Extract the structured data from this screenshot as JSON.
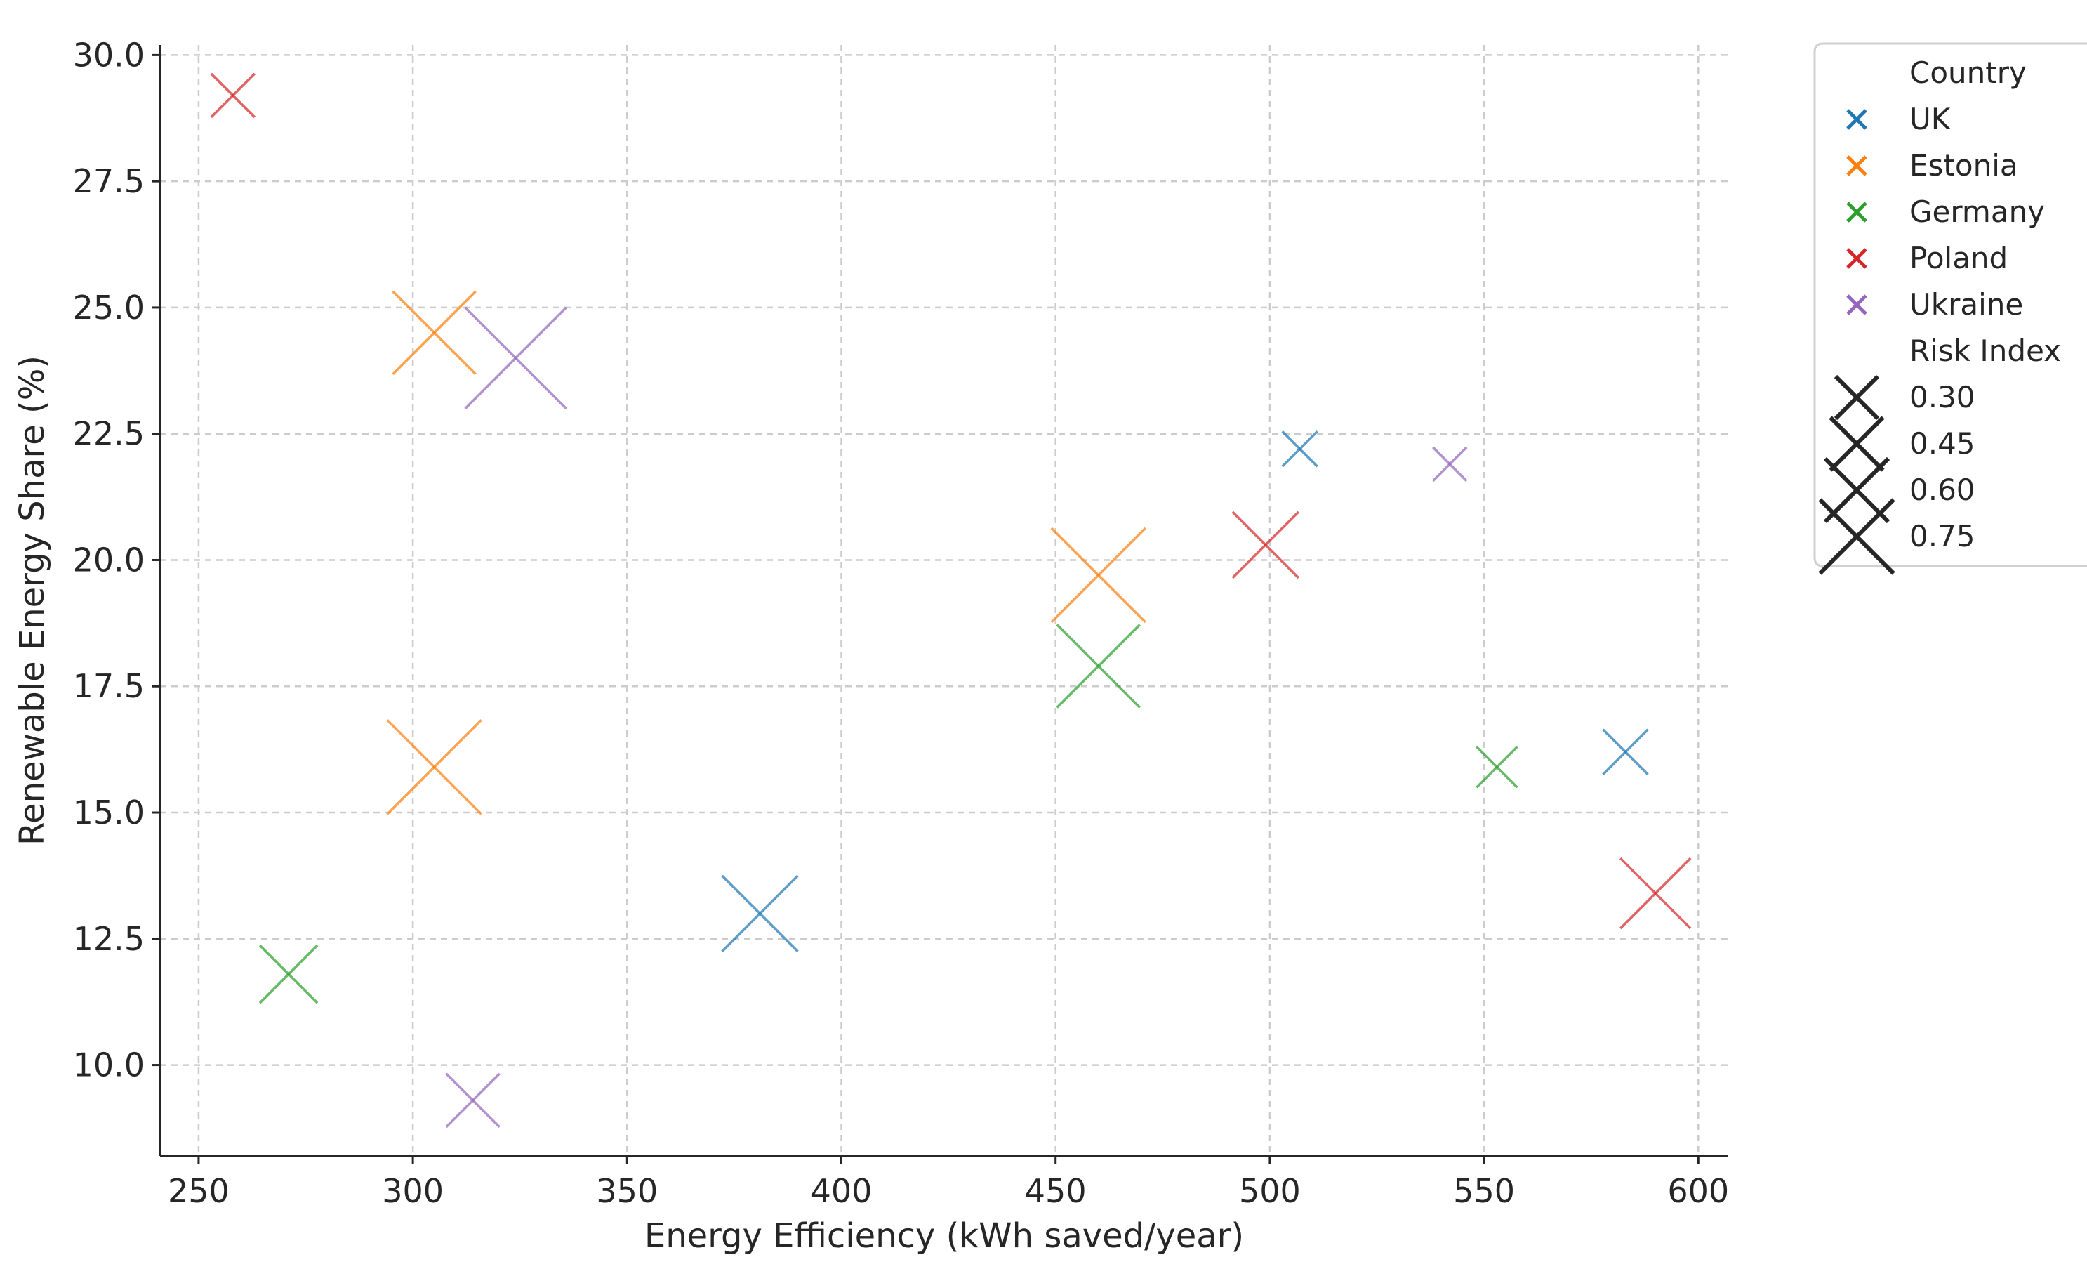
{
  "chart_data": {
    "type": "scatter",
    "xlabel": "Energy Efficiency (kWh saved/year)",
    "ylabel": "Renewable Energy Share (%)",
    "xlim": [
      241,
      607
    ],
    "ylim": [
      8.2,
      30.2
    ],
    "xticks": [
      250,
      300,
      350,
      400,
      450,
      500,
      550,
      600
    ],
    "yticks": [
      10.0,
      12.5,
      15.0,
      17.5,
      20.0,
      22.5,
      25.0,
      27.5,
      30.0
    ],
    "xtick_labels": [
      "250",
      "300",
      "350",
      "400",
      "450",
      "500",
      "550",
      "600"
    ],
    "ytick_labels": [
      "10.0",
      "12.5",
      "15.0",
      "17.5",
      "20.0",
      "22.5",
      "25.0",
      "27.5",
      "30.0"
    ],
    "grid": true,
    "marker": "x",
    "legend": {
      "placement": "outside-right-top",
      "hue_title": "Country",
      "size_title": "Risk Index",
      "size_levels": [
        {
          "label": "0.30",
          "value": 0.3
        },
        {
          "label": "0.45",
          "value": 0.45
        },
        {
          "label": "0.60",
          "value": 0.6
        },
        {
          "label": "0.75",
          "value": 0.75
        }
      ]
    },
    "series": [
      {
        "name": "UK",
        "color": "#1f77b4",
        "points": [
          {
            "x": 507,
            "y": 22.2,
            "risk": 0.28
          },
          {
            "x": 381,
            "y": 13.0,
            "risk": 0.57
          },
          {
            "x": 583,
            "y": 16.2,
            "risk": 0.35
          }
        ]
      },
      {
        "name": "Estonia",
        "color": "#ff7f0e",
        "points": [
          {
            "x": 305,
            "y": 24.5,
            "risk": 0.62
          },
          {
            "x": 460,
            "y": 19.7,
            "risk": 0.7
          },
          {
            "x": 305,
            "y": 15.9,
            "risk": 0.7
          }
        ]
      },
      {
        "name": "Germany",
        "color": "#2ca02c",
        "points": [
          {
            "x": 460,
            "y": 17.9,
            "risk": 0.62
          },
          {
            "x": 271,
            "y": 11.8,
            "risk": 0.44
          },
          {
            "x": 553,
            "y": 15.9,
            "risk": 0.32
          }
        ]
      },
      {
        "name": "Poland",
        "color": "#d62728",
        "points": [
          {
            "x": 258,
            "y": 29.2,
            "risk": 0.34
          },
          {
            "x": 499,
            "y": 20.3,
            "risk": 0.5
          },
          {
            "x": 590,
            "y": 13.4,
            "risk": 0.53
          }
        ]
      },
      {
        "name": "Ukraine",
        "color": "#9467bd",
        "points": [
          {
            "x": 324,
            "y": 24.0,
            "risk": 0.75
          },
          {
            "x": 314,
            "y": 9.3,
            "risk": 0.41
          },
          {
            "x": 542,
            "y": 21.9,
            "risk": 0.27
          }
        ]
      }
    ]
  }
}
